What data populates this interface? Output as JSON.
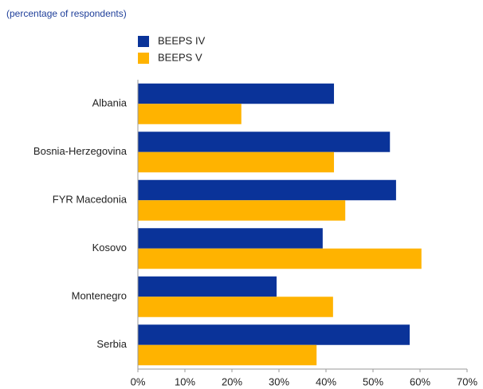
{
  "chart_data": {
    "type": "bar",
    "orientation": "horizontal",
    "subtitle": "(percentage of respondents)",
    "categories": [
      "Albania",
      "Bosnia-Herzegovina",
      "FYR Macedonia",
      "Kosovo",
      "Montenegro",
      "Serbia"
    ],
    "series": [
      {
        "name": "BEEPS IV",
        "color": "#0a3399",
        "values": [
          41.7,
          53.6,
          54.9,
          39.3,
          29.5,
          57.8
        ]
      },
      {
        "name": "BEEPS V",
        "color": "#ffb300",
        "values": [
          22.0,
          41.7,
          44.1,
          60.3,
          41.5,
          38.0
        ]
      }
    ],
    "xlim": [
      0,
      70
    ],
    "xticks": [
      {
        "value": 0,
        "label": "0%"
      },
      {
        "value": 10,
        "label": "10%"
      },
      {
        "value": 20,
        "label": "20%"
      },
      {
        "value": 30,
        "label": "30%"
      },
      {
        "value": 40,
        "label": "40%"
      },
      {
        "value": 50,
        "label": "50%"
      },
      {
        "value": 60,
        "label": "60%"
      },
      {
        "value": 70,
        "label": "70%"
      }
    ],
    "grid": false
  }
}
